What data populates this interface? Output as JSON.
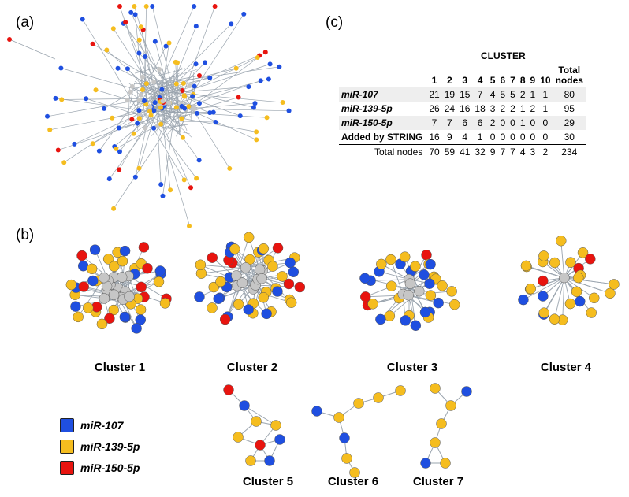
{
  "panel_labels": {
    "a": "(a)",
    "b": "(b)",
    "c": "(c)"
  },
  "colors": {
    "mir107": "#1f4fe0",
    "mir139": "#f5bd1f",
    "mir150": "#e8140f",
    "string": "#c6c6c6",
    "edge": "#9aa4ae",
    "outline": "#333333"
  },
  "legend": [
    {
      "label": "miR-107",
      "color": "#1f4fe0"
    },
    {
      "label": "miR-139-5p",
      "color": "#f5bd1f"
    },
    {
      "label": "miR-150-5p",
      "color": "#e8140f"
    }
  ],
  "clusters": {
    "c1": "Cluster 1",
    "c2": "Cluster 2",
    "c3": "Cluster 3",
    "c4": "Cluster 4",
    "c5": "Cluster 5",
    "c6": "Cluster 6",
    "c7": "Cluster 7"
  },
  "table": {
    "title": "CLUSTER",
    "columns": [
      "1",
      "2",
      "3",
      "4",
      "5",
      "6",
      "7",
      "8",
      "9",
      "10"
    ],
    "last_col_line1": "Total",
    "last_col_line2": "nodes",
    "rows": [
      {
        "label": "miR-107",
        "values": [
          "21",
          "19",
          "15",
          "7",
          "4",
          "5",
          "5",
          "2",
          "1",
          "1",
          "80"
        ]
      },
      {
        "label": "miR-139-5p",
        "values": [
          "26",
          "24",
          "16",
          "18",
          "3",
          "2",
          "2",
          "1",
          "2",
          "1",
          "95"
        ]
      },
      {
        "label": "miR-150-5p",
        "values": [
          "7",
          "7",
          "6",
          "6",
          "2",
          "0",
          "0",
          "1",
          "0",
          "0",
          "29"
        ]
      },
      {
        "label": "Added by STRING",
        "values": [
          "16",
          "9",
          "4",
          "1",
          "0",
          "0",
          "0",
          "0",
          "0",
          "0",
          "30"
        ]
      },
      {
        "label": "Total nodes",
        "values": [
          "70",
          "59",
          "41",
          "32",
          "9",
          "7",
          "7",
          "4",
          "3",
          "2",
          "234"
        ]
      }
    ]
  }
}
